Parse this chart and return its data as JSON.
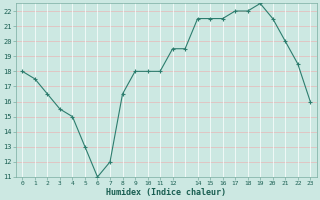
{
  "x": [
    0,
    1,
    2,
    3,
    4,
    5,
    6,
    7,
    8,
    9,
    10,
    11,
    12,
    13,
    14,
    15,
    16,
    17,
    18,
    19,
    20,
    21,
    22,
    23
  ],
  "y": [
    18.0,
    17.5,
    16.5,
    15.5,
    15.0,
    13.0,
    11.0,
    12.0,
    16.5,
    18.0,
    18.0,
    18.0,
    19.5,
    19.5,
    21.5,
    21.5,
    21.5,
    22.0,
    22.0,
    22.5,
    21.5,
    20.0,
    18.5,
    16.0
  ],
  "xlabel": "Humidex (Indice chaleur)",
  "ylim": [
    11,
    22.5
  ],
  "xlim": [
    -0.5,
    23.5
  ],
  "yticks": [
    11,
    12,
    13,
    14,
    15,
    16,
    17,
    18,
    19,
    20,
    21,
    22
  ],
  "xticks": [
    0,
    1,
    2,
    3,
    4,
    5,
    6,
    7,
    8,
    9,
    10,
    11,
    12,
    14,
    15,
    16,
    17,
    18,
    19,
    20,
    21,
    22,
    23
  ],
  "xtick_labels": [
    "0",
    "1",
    "2",
    "3",
    "4",
    "5",
    "6",
    "7",
    "8",
    "9",
    "10",
    "11",
    "12",
    "14",
    "15",
    "16",
    "17",
    "18",
    "19",
    "20",
    "21",
    "22",
    "23"
  ],
  "line_color": "#2d7d6e",
  "marker": "+",
  "bg_color": "#cce8e2",
  "grid_white_color": "#ffffff",
  "grid_pink_color": "#e8b8b8",
  "xlabel_color": "#1a5f52",
  "tick_color": "#1a5f52"
}
